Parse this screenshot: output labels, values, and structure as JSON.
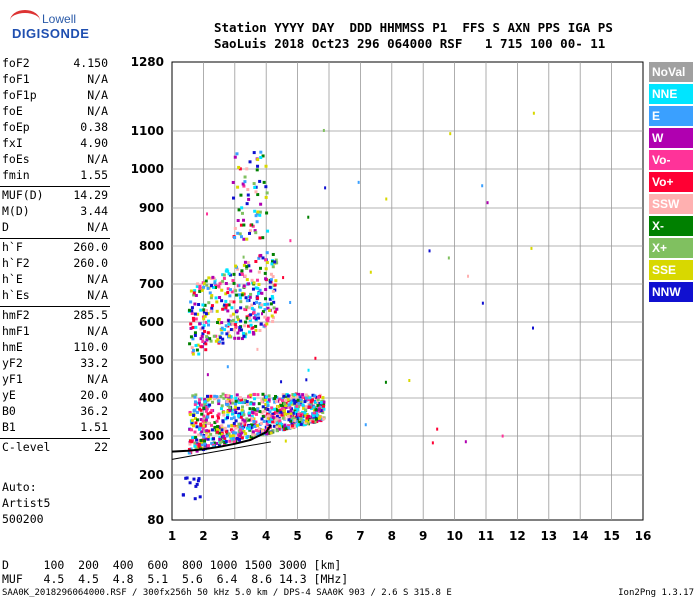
{
  "logo": {
    "line1": "Lowell",
    "line2": "DIGISONDE"
  },
  "header": {
    "row1": "Station YYYY DAY  DDD HHMMSS P1  FFS S AXN PPS IGA PS",
    "row2": "SaoLuis 2018 Oct23 296 064000 RSF   1 715 100 00- 11"
  },
  "params": [
    {
      "name": "foF2",
      "value": "4.150"
    },
    {
      "name": "foF1",
      "value": "N/A"
    },
    {
      "name": "foF1p",
      "value": "N/A"
    },
    {
      "name": "foE",
      "value": "N/A"
    },
    {
      "name": "foEp",
      "value": "0.38"
    },
    {
      "name": "fxI",
      "value": "4.90"
    },
    {
      "name": "foEs",
      "value": "N/A"
    },
    {
      "name": "fmin",
      "value": "1.55"
    },
    {
      "name": "MUF(D)",
      "value": "14.29"
    },
    {
      "name": "M(D)",
      "value": "3.44"
    },
    {
      "name": "D",
      "value": "N/A"
    },
    {
      "name": "h`F",
      "value": "260.0"
    },
    {
      "name": "h`F2",
      "value": "260.0"
    },
    {
      "name": "h`E",
      "value": "N/A"
    },
    {
      "name": "h`Es",
      "value": "N/A"
    },
    {
      "name": "hmF2",
      "value": "285.5"
    },
    {
      "name": "hmF1",
      "value": "N/A"
    },
    {
      "name": "hmE",
      "value": "110.0"
    },
    {
      "name": "yF2",
      "value": "33.2"
    },
    {
      "name": "yF1",
      "value": "N/A"
    },
    {
      "name": "yE",
      "value": "20.0"
    },
    {
      "name": "B0",
      "value": "36.2"
    },
    {
      "name": "B1",
      "value": "1.51"
    },
    {
      "name": "C-level",
      "value": "22"
    }
  ],
  "autoscale": {
    "label": "Auto:",
    "artist": "Artist5",
    "code": "500200"
  },
  "legend": [
    {
      "label": "NoVal",
      "color": "#a0a0a0"
    },
    {
      "label": "NNE",
      "color": "#00e5ff"
    },
    {
      "label": "E",
      "color": "#3aa0ff"
    },
    {
      "label": "W",
      "color": "#b000b0"
    },
    {
      "label": "Vo-",
      "color": "#ff3399"
    },
    {
      "label": "Vo+",
      "color": "#ff0033"
    },
    {
      "label": "SSW",
      "color": "#ffb0b0"
    },
    {
      "label": "X-",
      "color": "#008000"
    },
    {
      "label": "X+",
      "color": "#80c060"
    },
    {
      "label": "SSE",
      "color": "#d8d800"
    },
    {
      "label": "NNW",
      "color": "#1010d0"
    }
  ],
  "footer": {
    "d_row": "D     100  200  400  600  800 1000 1500 3000 [km]",
    "muf_row": "MUF   4.5  4.5  4.8  5.1  5.6  6.4  8.6 14.3 [MHz]",
    "info": "SAA0K_2018296064000.RSF / 300fx256h 50 kHz 5.0 km / DPS-4 SAA0K 903 / 2.6 S 315.8 E",
    "version": "Ion2Png 1.3.17"
  },
  "chart_data": {
    "type": "scatter",
    "title": "",
    "xlabel": "",
    "ylabel": "",
    "xlim": [
      1,
      16
    ],
    "ylim": [
      80,
      1280
    ],
    "x_ticks": [
      1,
      2,
      3,
      4,
      5,
      6,
      7,
      8,
      9,
      10,
      11,
      12,
      13,
      14,
      15,
      16
    ],
    "y_ticks": [
      80,
      200,
      300,
      400,
      500,
      600,
      700,
      800,
      900,
      1000,
      1100,
      1280
    ],
    "y_scale": "nonlinear",
    "grid": true,
    "echo_clusters": [
      {
        "name": "F-layer trace",
        "x_range": [
          1.5,
          5.8
        ],
        "y_range": [
          250,
          420
        ],
        "color": "mixed"
      },
      {
        "name": "2nd hop",
        "x_range": [
          1.5,
          4.3
        ],
        "y_range": [
          480,
          750
        ],
        "color": "mixed"
      },
      {
        "name": "3rd hop",
        "x_range": [
          2.9,
          4.0
        ],
        "y_range": [
          820,
          1050
        ],
        "color": "mixed"
      },
      {
        "name": "low echoes",
        "x_range": [
          1.3,
          1.9
        ],
        "y_range": [
          140,
          200
        ],
        "color": "#1010d0"
      }
    ],
    "profile_curve": {
      "x": [
        1.0,
        1.5,
        2.0,
        2.5,
        3.0,
        3.5,
        4.0,
        4.15
      ],
      "y": [
        260,
        262,
        266,
        272,
        280,
        290,
        310,
        330
      ]
    },
    "lower_line": {
      "x": [
        1.0,
        4.15
      ],
      "y": [
        240,
        285
      ]
    }
  }
}
